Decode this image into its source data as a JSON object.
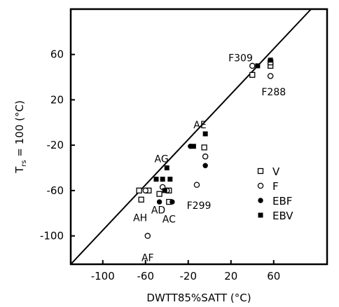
{
  "chart_data": {
    "type": "scatter",
    "title": "",
    "xlabel": "DWTT85%SATT (°C)",
    "ylabel": "T_rs=100 (°C)",
    "xlim": [
      -130,
      110
    ],
    "ylim": [
      -125,
      100
    ],
    "xticks": [
      -100,
      -60,
      -20,
      20,
      60
    ],
    "yticks": [
      -100,
      -60,
      -20,
      20,
      60
    ],
    "grid": false,
    "legend_position": "right",
    "reference_line": {
      "name": "",
      "x": [
        -130,
        95
      ],
      "y": [
        -125,
        100
      ]
    },
    "series": [
      {
        "name": "V",
        "marker": "open-square",
        "points": [
          {
            "x": -66,
            "y": -60
          },
          {
            "x": -64,
            "y": -68
          },
          {
            "x": -57,
            "y": -60
          },
          {
            "x": -47,
            "y": -63
          },
          {
            "x": -38,
            "y": -60
          },
          {
            "x": -38,
            "y": -70
          },
          {
            "x": -5,
            "y": -22
          },
          {
            "x": 40,
            "y": 42
          },
          {
            "x": 57,
            "y": 50
          },
          {
            "x": 57,
            "y": 53
          }
        ]
      },
      {
        "name": "F",
        "marker": "open-circle",
        "points": [
          {
            "x": -60,
            "y": -60
          },
          {
            "x": -58,
            "y": -100
          },
          {
            "x": -44,
            "y": -57
          },
          {
            "x": -40,
            "y": -60
          },
          {
            "x": -12,
            "y": -55
          },
          {
            "x": -4,
            "y": -30
          },
          {
            "x": 40,
            "y": 50
          },
          {
            "x": 57,
            "y": 41
          }
        ]
      },
      {
        "name": "EBF",
        "marker": "filled-circle",
        "points": [
          {
            "x": -47,
            "y": -70
          },
          {
            "x": -35,
            "y": -70
          },
          {
            "x": -18,
            "y": -21
          },
          {
            "x": -4,
            "y": -38
          }
        ]
      },
      {
        "name": "EBV",
        "marker": "filled-square",
        "points": [
          {
            "x": -50,
            "y": -50
          },
          {
            "x": -44,
            "y": -50
          },
          {
            "x": -40,
            "y": -40
          },
          {
            "x": -37,
            "y": -50
          },
          {
            "x": -42,
            "y": -60
          },
          {
            "x": -15,
            "y": -21
          },
          {
            "x": -4,
            "y": -10
          },
          {
            "x": 45,
            "y": 50
          },
          {
            "x": 57,
            "y": 55
          }
        ]
      }
    ],
    "annotations": [
      {
        "text": "F309",
        "x": 29,
        "y": 57
      },
      {
        "text": "F288",
        "x": 60,
        "y": 27
      },
      {
        "text": "AE",
        "x": -9,
        "y": -2
      },
      {
        "text": "AG",
        "x": -45,
        "y": -32
      },
      {
        "text": "AD",
        "x": -48,
        "y": -77
      },
      {
        "text": "AH",
        "x": -65,
        "y": -84
      },
      {
        "text": "AC",
        "x": -38,
        "y": -85
      },
      {
        "text": "F299",
        "x": -10,
        "y": -73
      },
      {
        "text": "AF",
        "x": -58,
        "y": -119
      }
    ]
  }
}
